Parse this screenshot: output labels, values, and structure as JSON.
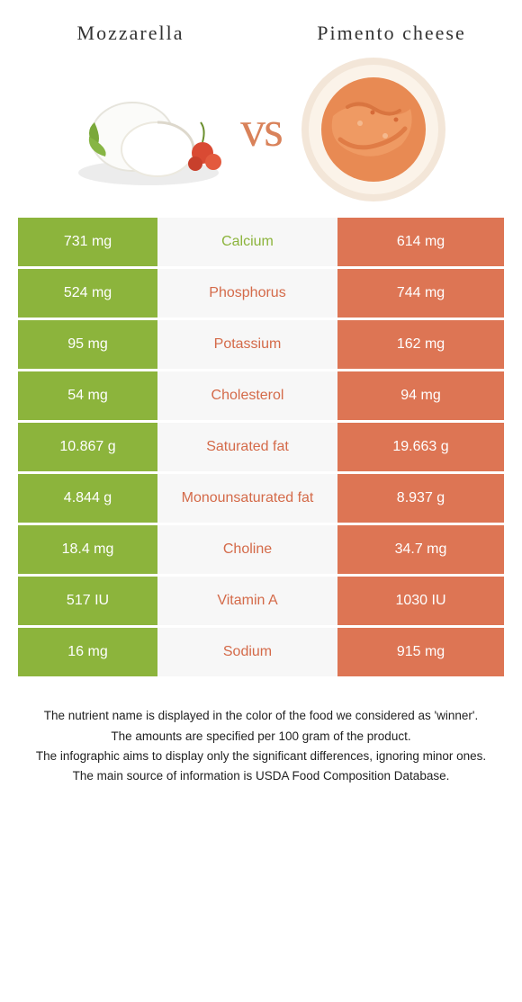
{
  "colors": {
    "left": "#8cb43c",
    "right": "#dd7554",
    "mid_bg": "#f7f7f7",
    "left_label": "#8cb43c",
    "right_label": "#d46a49"
  },
  "left_food": {
    "title": "Mozzarella"
  },
  "right_food": {
    "title": "Pimento cheese"
  },
  "vs": "vs",
  "rows": [
    {
      "left": "731 mg",
      "label": "Calcium",
      "right": "614 mg",
      "winner": "left"
    },
    {
      "left": "524 mg",
      "label": "Phosphorus",
      "right": "744 mg",
      "winner": "right"
    },
    {
      "left": "95 mg",
      "label": "Potassium",
      "right": "162 mg",
      "winner": "right"
    },
    {
      "left": "54 mg",
      "label": "Cholesterol",
      "right": "94 mg",
      "winner": "right"
    },
    {
      "left": "10.867 g",
      "label": "Saturated fat",
      "right": "19.663 g",
      "winner": "right"
    },
    {
      "left": "4.844 g",
      "label": "Monounsaturated fat",
      "right": "8.937 g",
      "winner": "right"
    },
    {
      "left": "18.4 mg",
      "label": "Choline",
      "right": "34.7 mg",
      "winner": "right"
    },
    {
      "left": "517 IU",
      "label": "Vitamin A",
      "right": "1030 IU",
      "winner": "right"
    },
    {
      "left": "16 mg",
      "label": "Sodium",
      "right": "915 mg",
      "winner": "right"
    }
  ],
  "footer": {
    "l1": "The nutrient name is displayed in the color of the food we considered as 'winner'.",
    "l2": "The amounts are specified per 100 gram of the product.",
    "l3": "The infographic aims to display only the significant differences, ignoring minor ones.",
    "l4": "The main source of information is USDA Food Composition Database."
  }
}
